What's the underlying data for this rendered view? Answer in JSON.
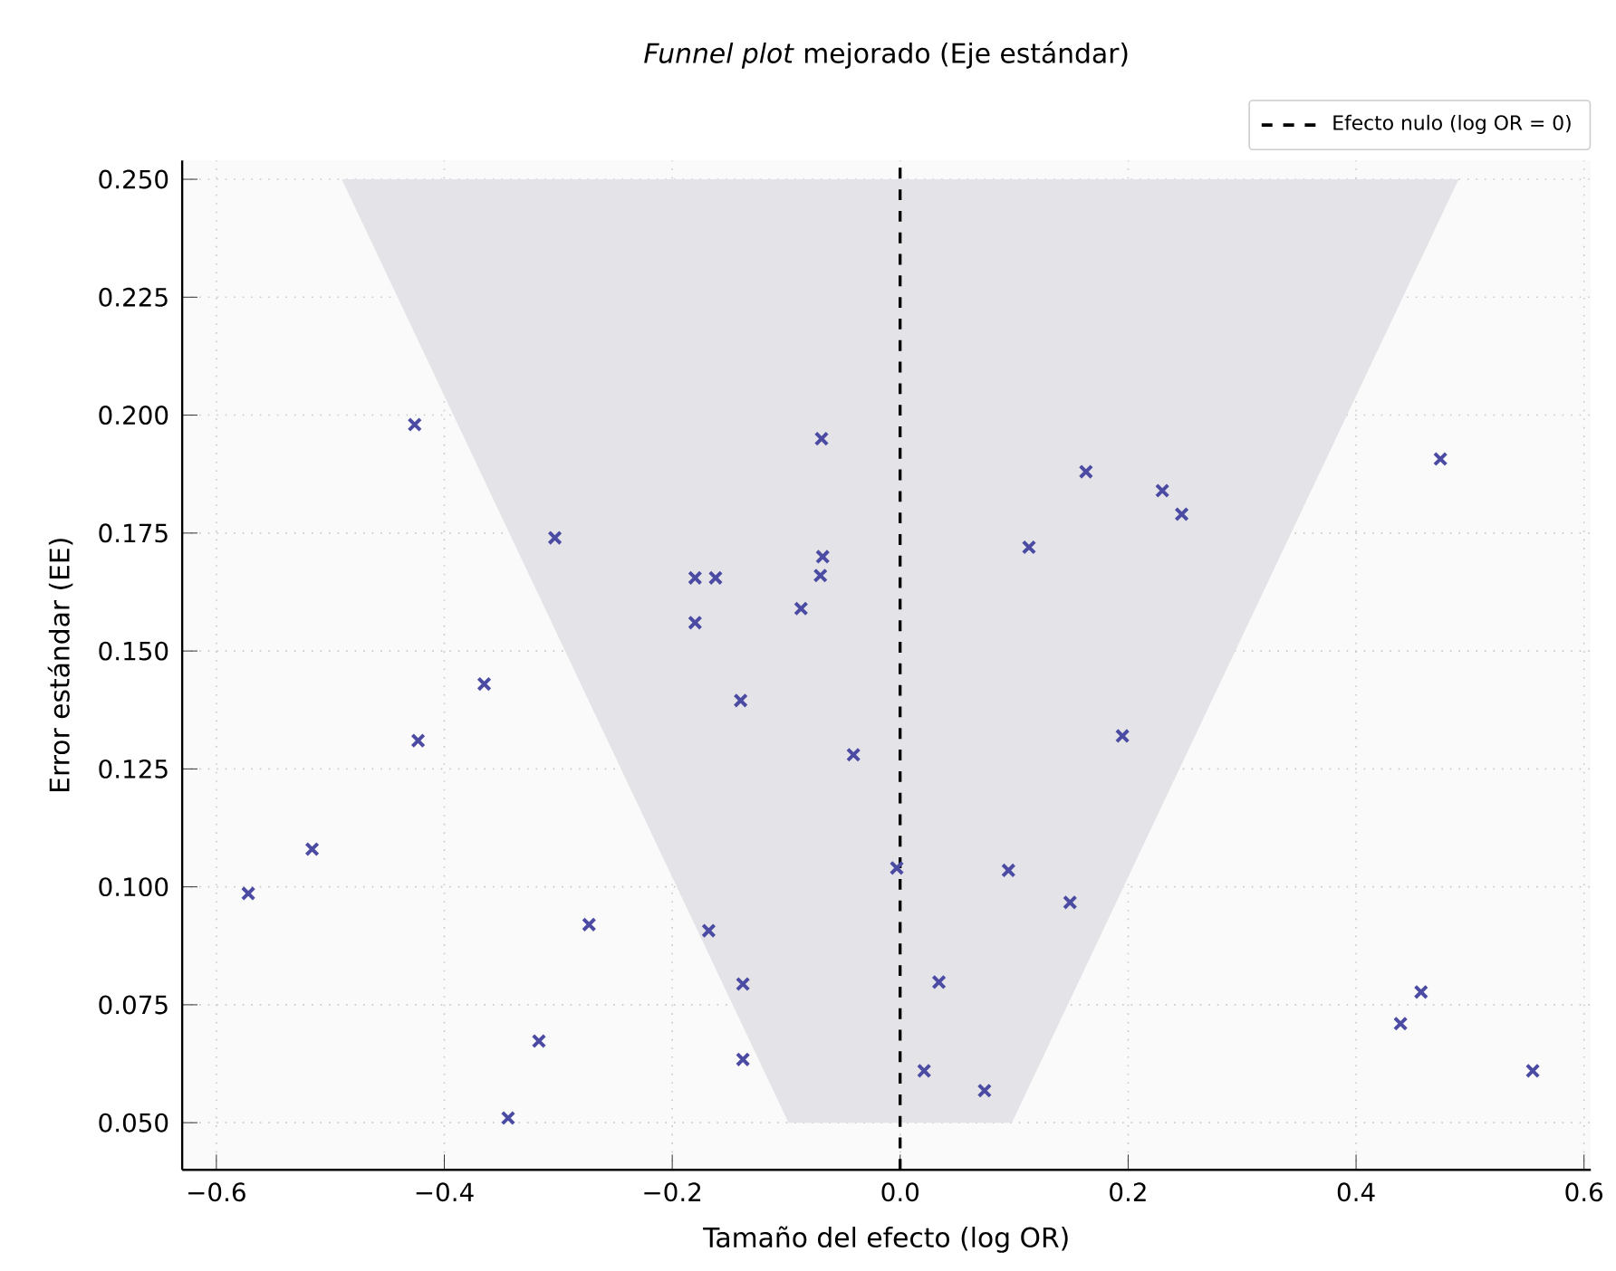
{
  "chart_data": {
    "type": "scatter",
    "title": "*Funnel plot* mejorado (Eje estándar)",
    "xlabel": "Tamaño del efecto (log OR)",
    "ylabel": "Error estándar (EE)",
    "xlim": [
      -0.63,
      0.606
    ],
    "ylim": [
      0.04,
      0.254
    ],
    "xticks": [
      {
        "value": -0.6,
        "label": "−0.6"
      },
      {
        "value": -0.4,
        "label": "−0.4"
      },
      {
        "value": -0.2,
        "label": "−0.2"
      },
      {
        "value": 0,
        "label": "0.0"
      },
      {
        "value": 0.2,
        "label": "0.2"
      },
      {
        "value": 0.4,
        "label": "0.4"
      },
      {
        "value": 0.6,
        "label": "0.6"
      }
    ],
    "yticks": [
      {
        "value": 0.05,
        "label": "0.050"
      },
      {
        "value": 0.075,
        "label": "0.075"
      },
      {
        "value": 0.1,
        "label": "0.100"
      },
      {
        "value": 0.125,
        "label": "0.125"
      },
      {
        "value": 0.15,
        "label": "0.150"
      },
      {
        "value": 0.175,
        "label": "0.175"
      },
      {
        "value": 0.2,
        "label": "0.200"
      },
      {
        "value": 0.225,
        "label": "0.225"
      },
      {
        "value": 0.25,
        "label": "0.250"
      }
    ],
    "grid": true,
    "legend": "top right",
    "ref_lines": [
      {
        "axis": "x",
        "value": 0,
        "label": "Efecto nulo (log OR = 0)",
        "color": "#000000",
        "line_style": "dashed"
      }
    ],
    "series": [
      {
        "type": "area",
        "color": "#e4e4e8",
        "x": [
          -0.49,
          -0.098,
          0.098,
          0.49
        ],
        "values": [
          0.25,
          0.05,
          0.05,
          0.25
        ]
      },
      {
        "color": "#4b4ba3",
        "marker": "cross",
        "x": [
          -0.426,
          -0.303,
          -0.423,
          -0.365,
          -0.516,
          -0.069,
          -0.18,
          -0.162,
          -0.18,
          -0.14,
          -0.087,
          -0.068,
          -0.07,
          -0.041,
          -0.572,
          -0.273,
          -0.168,
          -0.138,
          -0.317,
          -0.138,
          -0.344,
          0.163,
          0.23,
          0.247,
          0.113,
          0.195,
          0.474,
          -0.003,
          0.095,
          0.149,
          0.034,
          0.021,
          0.074,
          0.457,
          0.439,
          0.555
        ],
        "values": [
          0.198,
          0.174,
          0.131,
          0.143,
          0.108,
          0.195,
          0.1655,
          0.1655,
          0.156,
          0.1395,
          0.159,
          0.17,
          0.166,
          0.128,
          0.0986,
          0.092,
          0.0907,
          0.0794,
          0.0673,
          0.0634,
          0.051,
          0.188,
          0.184,
          0.179,
          0.172,
          0.132,
          0.1907,
          0.104,
          0.1035,
          0.0967,
          0.0798,
          0.061,
          0.0568,
          0.0777,
          0.071,
          0.061
        ]
      }
    ]
  }
}
